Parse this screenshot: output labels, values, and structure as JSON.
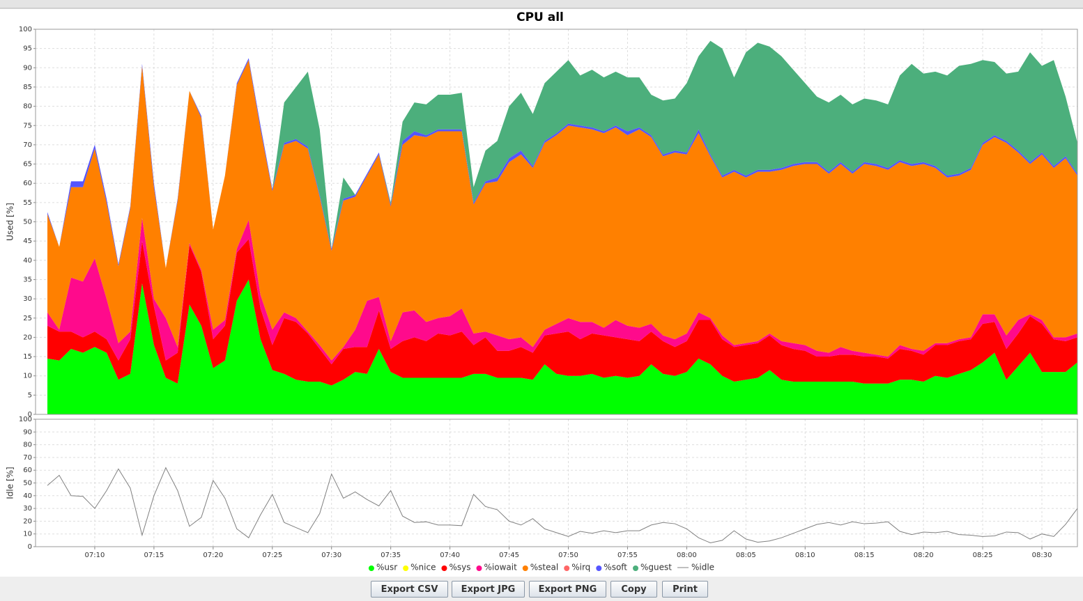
{
  "chart_data": [
    {
      "type": "area",
      "stacked": true,
      "title": "CPU all",
      "ylabel": "Used [%]",
      "x": [
        "07:06",
        "07:07",
        "07:08",
        "07:09",
        "07:10",
        "07:11",
        "07:12",
        "07:13",
        "07:14",
        "07:15",
        "07:16",
        "07:17",
        "07:18",
        "07:19",
        "07:20",
        "07:21",
        "07:22",
        "07:23",
        "07:24",
        "07:25",
        "07:26",
        "07:27",
        "07:28",
        "07:29",
        "07:30",
        "07:31",
        "07:32",
        "07:33",
        "07:34",
        "07:35",
        "07:36",
        "07:37",
        "07:38",
        "07:39",
        "07:40",
        "07:41",
        "07:42",
        "07:43",
        "07:44",
        "07:45",
        "07:46",
        "07:47",
        "07:48",
        "07:49",
        "07:50",
        "07:51",
        "07:52",
        "07:53",
        "07:54",
        "07:55",
        "07:56",
        "07:57",
        "07:58",
        "07:59",
        "08:00",
        "08:01",
        "08:02",
        "08:03",
        "08:04",
        "08:05",
        "08:06",
        "08:07",
        "08:08",
        "08:09",
        "08:10",
        "08:11",
        "08:12",
        "08:13",
        "08:14",
        "08:15",
        "08:16",
        "08:17",
        "08:18",
        "08:19",
        "08:20",
        "08:21",
        "08:22",
        "08:23",
        "08:24",
        "08:25",
        "08:26",
        "08:27",
        "08:28",
        "08:29",
        "08:30",
        "08:31",
        "08:32",
        "08:33"
      ],
      "xticks": [
        "07:10",
        "07:15",
        "07:20",
        "07:25",
        "07:30",
        "07:35",
        "07:40",
        "07:45",
        "07:50",
        "07:55",
        "08:00",
        "08:05",
        "08:10",
        "08:15",
        "08:20",
        "08:25",
        "08:30"
      ],
      "ylim": [
        0,
        100
      ],
      "yticks": [
        0,
        5,
        10,
        15,
        20,
        25,
        30,
        35,
        40,
        45,
        50,
        55,
        60,
        65,
        70,
        75,
        80,
        85,
        90,
        95,
        100
      ],
      "grid": true,
      "series": [
        {
          "name": "%usr",
          "color": "#00ff00",
          "values": [
            14.5,
            14,
            17,
            16,
            17.5,
            16,
            9,
            10.5,
            34,
            18,
            9.5,
            8,
            28.5,
            23,
            12,
            14,
            29.5,
            35,
            19.5,
            11.5,
            10.5,
            9,
            8.5,
            8.5,
            7.5,
            9,
            11,
            10.5,
            17,
            11,
            9.5,
            9.5,
            9.5,
            9.5,
            9.5,
            9.5,
            10.5,
            10.5,
            9.5,
            9.5,
            9.5,
            9,
            13,
            10.5,
            10,
            10,
            10.5,
            9.5,
            10,
            9.5,
            10,
            13,
            10.5,
            10,
            11,
            14.5,
            13,
            10,
            8.5,
            9,
            9.5,
            11.5,
            9,
            8.5,
            8.5,
            8.5,
            8.5,
            8.5,
            8.5,
            8,
            8,
            8,
            9,
            9,
            8.5,
            10,
            9.5,
            10.5,
            11.5,
            13.5,
            16,
            9,
            12.5,
            16,
            11,
            11,
            11,
            13.5
          ]
        },
        {
          "name": "%nice",
          "color": "#ffff00",
          "values": [
            0,
            0,
            0,
            0,
            0,
            0,
            0,
            0,
            0,
            0,
            0,
            0,
            0,
            0,
            0,
            0,
            0,
            0,
            0,
            0,
            0,
            0,
            0,
            0,
            0,
            0,
            0,
            0,
            0,
            0,
            0,
            0,
            0,
            0,
            0,
            0,
            0,
            0,
            0,
            0,
            0,
            0,
            0,
            0,
            0,
            0,
            0,
            0,
            0,
            0,
            0,
            0,
            0,
            0,
            0,
            0,
            0,
            0,
            0,
            0,
            0,
            0,
            0,
            0,
            0,
            0,
            0,
            0,
            0,
            0,
            0,
            0,
            0,
            0,
            0,
            0,
            0,
            0,
            0,
            0,
            0,
            0,
            0,
            0,
            0,
            0,
            0,
            0
          ]
        },
        {
          "name": "%sys",
          "color": "#ff0000",
          "values": [
            8.5,
            7.5,
            4.5,
            4,
            4,
            3.5,
            5,
            9,
            11,
            10,
            4.5,
            8,
            15.5,
            14,
            7.5,
            9,
            12.5,
            10.5,
            8,
            6.5,
            14.5,
            15,
            12.5,
            8.5,
            5.5,
            8,
            6.5,
            7,
            10,
            6,
            9.5,
            10.5,
            9.5,
            11.5,
            11,
            12,
            7.5,
            9.5,
            7,
            7,
            8,
            7,
            7.5,
            10.5,
            11.5,
            9.5,
            10.5,
            11,
            10,
            10,
            9,
            8.5,
            8.5,
            7.5,
            8,
            10,
            11.5,
            9.5,
            9,
            9,
            9,
            9,
            9,
            8.5,
            8,
            6.5,
            6.5,
            7,
            7,
            7,
            7,
            6.5,
            8,
            7.5,
            7,
            8,
            8.5,
            8.5,
            8,
            10,
            8,
            8,
            8.5,
            9.5,
            12.5,
            8.5,
            8,
            6.5
          ]
        },
        {
          "name": "%iowait",
          "color": "#ff0a8c",
          "values": [
            3.5,
            0.5,
            14,
            14.5,
            19,
            10.5,
            4.5,
            2,
            6,
            2,
            11,
            1.5,
            0.5,
            0.5,
            2.5,
            1.5,
            1,
            5,
            3.5,
            4,
            1.5,
            1,
            0.5,
            1,
            1,
            0.5,
            4.5,
            12,
            3.5,
            2,
            7.5,
            7,
            5,
            4,
            5,
            6,
            3,
            1.5,
            4,
            3,
            2.5,
            1.5,
            1.5,
            2.5,
            3.5,
            4.5,
            3,
            2,
            4.5,
            3.5,
            3.5,
            2,
            1.5,
            2,
            2,
            2,
            0.5,
            1,
            0.5,
            0.5,
            0.5,
            0.5,
            1,
            1.5,
            1.5,
            1.5,
            1,
            2,
            1,
            1,
            0.5,
            0.5,
            1,
            0.5,
            1,
            0.5,
            0.5,
            0.5,
            0.5,
            2.5,
            2,
            3.5,
            3.5,
            0.5,
            1,
            0.5,
            1,
            1
          ]
        },
        {
          "name": "%steal",
          "color": "#ff8000",
          "values": [
            25.5,
            21.5,
            23.5,
            24.5,
            28.5,
            25,
            20,
            32,
            39.5,
            29,
            13,
            38,
            39.5,
            39.5,
            26,
            37.5,
            42.5,
            41.5,
            43,
            36,
            43.5,
            46,
            47.5,
            38.5,
            28.5,
            38,
            34.5,
            32.5,
            37,
            35,
            43.5,
            45.5,
            48,
            48.5,
            48,
            46,
            33.5,
            38.5,
            40,
            46,
            47.5,
            46.5,
            48.5,
            49,
            50,
            50.5,
            50,
            50.5,
            50,
            49.5,
            51.5,
            48.5,
            46.5,
            48.5,
            46.5,
            46.5,
            42,
            41,
            45,
            43,
            44,
            42,
            44.5,
            46,
            47,
            48.5,
            46.5,
            47.5,
            46,
            49,
            49,
            48.5,
            47.5,
            47.5,
            48.5,
            45.5,
            43,
            42.5,
            43.5,
            44,
            46,
            50,
            43.5,
            39,
            43,
            44,
            46.5,
            41
          ]
        },
        {
          "name": "%irq",
          "color": "#ff6666",
          "values": [
            0,
            0,
            0,
            0,
            0,
            0,
            0,
            0,
            0,
            0,
            0,
            0,
            0,
            0,
            0,
            0,
            0,
            0,
            0,
            0,
            0,
            0,
            0,
            0,
            0,
            0,
            0,
            0,
            0,
            0,
            0,
            0,
            0,
            0,
            0,
            0,
            0,
            0,
            0,
            0,
            0,
            0,
            0,
            0,
            0,
            0,
            0,
            0,
            0,
            0,
            0,
            0,
            0,
            0,
            0,
            0,
            0,
            0,
            0,
            0,
            0,
            0,
            0,
            0,
            0,
            0,
            0,
            0,
            0,
            0,
            0,
            0,
            0,
            0,
            0,
            0,
            0,
            0,
            0,
            0,
            0,
            0,
            0,
            0,
            0,
            0,
            0,
            0
          ]
        },
        {
          "name": "%soft",
          "color": "#5555ff",
          "values": [
            0.5,
            0,
            1.5,
            1.5,
            1,
            1,
            0.5,
            0.5,
            0.5,
            1,
            0,
            0.5,
            0,
            0.5,
            0,
            0,
            0.5,
            0.5,
            1,
            0.5,
            0.5,
            0.5,
            0.5,
            0.5,
            0.5,
            0.5,
            0.5,
            0.5,
            0.5,
            0.5,
            1,
            1,
            0.5,
            0.5,
            0.5,
            0.5,
            0.5,
            0.5,
            1,
            1,
            1,
            0.5,
            0.5,
            0.5,
            0.5,
            0.5,
            0.5,
            0.5,
            0.5,
            1,
            0.5,
            0.5,
            0.5,
            0.5,
            0.5,
            1,
            0.5,
            0.5,
            0.5,
            0.5,
            0.5,
            0.5,
            0.5,
            0.5,
            0.5,
            0.5,
            0.5,
            0.5,
            0.5,
            0.5,
            0.5,
            0.5,
            0.5,
            0.5,
            0.5,
            0.5,
            0.5,
            0.5,
            0.5,
            0.5,
            0.5,
            0.5,
            0.5,
            0.5,
            0.5,
            0.5,
            0.5,
            0.5
          ]
        },
        {
          "name": "%guest",
          "color": "#4caf7c",
          "values": [
            0,
            0,
            0,
            0,
            0,
            0,
            0,
            0,
            0,
            0,
            0,
            0,
            0,
            0,
            0,
            0,
            0,
            0,
            0,
            0,
            10.5,
            13.5,
            19.5,
            17,
            0,
            5.5,
            0,
            0,
            0,
            0.5,
            5,
            7.5,
            8,
            9,
            9,
            9.5,
            4,
            8,
            9.5,
            13.5,
            15,
            13.5,
            15,
            16,
            16.5,
            13,
            15,
            14,
            14,
            14,
            13,
            10.5,
            14,
            13.5,
            18,
            19,
            29.5,
            33,
            24,
            32,
            33,
            32,
            29,
            24.5,
            20.5,
            17,
            18,
            17.5,
            17.5,
            16.5,
            16.5,
            16.5,
            22,
            26,
            23,
            24.5,
            26,
            28,
            27,
            21.5,
            19,
            17.5,
            20.5,
            28.5,
            22.5,
            27.5,
            15.5,
            8
          ]
        }
      ]
    },
    {
      "type": "line",
      "ylabel": "Idle [%]",
      "ylim": [
        0,
        100
      ],
      "yticks": [
        0,
        10,
        20,
        30,
        40,
        50,
        60,
        70,
        80,
        90,
        100
      ],
      "grid": true,
      "series": [
        {
          "name": "%idle",
          "color": "#808080",
          "values": [
            48,
            56,
            40,
            39.5,
            30,
            44,
            61,
            46,
            9,
            40,
            62,
            44,
            16,
            23,
            52,
            38,
            14,
            7,
            25,
            41,
            19,
            15,
            11,
            26,
            57,
            38,
            43,
            37,
            32,
            44,
            24,
            19,
            19.5,
            17,
            17,
            16.5,
            41,
            31.5,
            29,
            20,
            17,
            22,
            14,
            11,
            8,
            12,
            10.5,
            12.5,
            11,
            12.5,
            12.5,
            17,
            19,
            18,
            14,
            7,
            3,
            5,
            12.5,
            6,
            3.5,
            4.5,
            7,
            10.5,
            14,
            17.5,
            19,
            17,
            19.5,
            18,
            18.5,
            19.5,
            12,
            9.5,
            11.5,
            11,
            12,
            9.5,
            9,
            8,
            8.5,
            11.5,
            11,
            6,
            10,
            8,
            17.5,
            30
          ]
        }
      ]
    }
  ],
  "buttons": [
    "Export CSV",
    "Export JPG",
    "Export PNG",
    "Copy",
    "Print"
  ]
}
